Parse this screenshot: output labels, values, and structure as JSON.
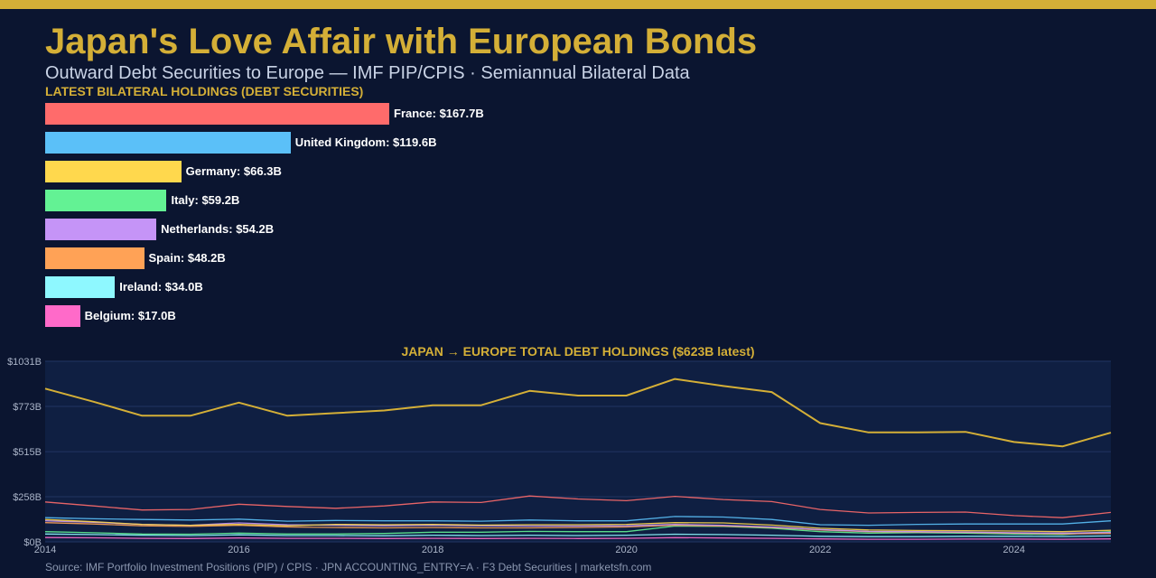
{
  "header": {
    "title": "Japan's Love Affair with European Bonds",
    "subtitle": "Outward Debt Securities to Europe — IMF PIP/CPIS · Semiannual Bilateral Data",
    "section_label": "LATEST BILATERAL HOLDINGS (DEBT SECURITIES)"
  },
  "footer": {
    "source": "Source: IMF Portfolio Investment Positions (PIP) / CPIS · JPN ACCOUNTING_ENTRY=A · F3 Debt Securities  |  marketsfn.com"
  },
  "colors": {
    "background": "#0b1530",
    "accent": "#d4af37",
    "plot_bg": "#0f1f42",
    "grid": "#223563",
    "axis_text": "#aab4c8"
  },
  "chart_data": [
    {
      "type": "bar",
      "orientation": "horizontal",
      "title": "LATEST BILATERAL HOLDINGS (DEBT SECURITIES)",
      "unit": "$B",
      "categories": [
        "France",
        "United Kingdom",
        "Germany",
        "Italy",
        "Netherlands",
        "Spain",
        "Ireland",
        "Belgium"
      ],
      "values": [
        167.7,
        119.6,
        66.3,
        59.2,
        54.2,
        48.2,
        34.0,
        17.0
      ],
      "labels": [
        "France: $167.7B",
        "United Kingdom: $119.6B",
        "Germany: $66.3B",
        "Italy: $59.2B",
        "Netherlands: $54.2B",
        "Spain: $48.2B",
        "Ireland: $34.0B",
        "Belgium: $17.0B"
      ],
      "colors": [
        "#ff6b6b",
        "#5bc0f8",
        "#ffd84d",
        "#63f294",
        "#c594f7",
        "#ffa256",
        "#8ef8ff",
        "#ff6ac9"
      ]
    },
    {
      "type": "line",
      "title": "JAPAN → EUROPE TOTAL DEBT HOLDINGS ($623B latest)",
      "xlim": [
        2014,
        2025
      ],
      "ylim": [
        0,
        1031
      ],
      "yticks": [
        0,
        258,
        515,
        773,
        1031
      ],
      "ytick_labels": [
        "$0B",
        "$258B",
        "$515B",
        "$773B",
        "$1031B"
      ],
      "xticks": [
        2014,
        2016,
        2018,
        2020,
        2022,
        2024
      ],
      "grid": true,
      "x": [
        2014,
        2014.5,
        2015,
        2015.5,
        2016,
        2016.5,
        2017,
        2017.5,
        2018,
        2018.5,
        2019,
        2019.5,
        2020,
        2020.5,
        2021,
        2021.5,
        2022,
        2022.5,
        2023,
        2023.5,
        2024,
        2024.5,
        2025
      ],
      "series": [
        {
          "color": "#d4af37",
          "width": 2,
          "values": [
            875,
            800,
            720,
            720,
            795,
            720,
            735,
            750,
            780,
            780,
            862,
            835,
            835,
            930,
            890,
            855,
            678,
            625,
            625,
            628,
            570,
            545,
            623
          ]
        },
        {
          "color": "#ff6b6b",
          "width": 1.3,
          "values": [
            228,
            205,
            182,
            185,
            215,
            202,
            192,
            205,
            228,
            225,
            262,
            245,
            235,
            260,
            242,
            230,
            185,
            165,
            168,
            170,
            150,
            138,
            168
          ]
        },
        {
          "color": "#5bc0f8",
          "width": 1.3,
          "values": [
            138,
            132,
            128,
            125,
            130,
            118,
            122,
            120,
            120,
            118,
            125,
            120,
            120,
            145,
            142,
            128,
            98,
            95,
            100,
            102,
            102,
            102,
            120
          ]
        },
        {
          "color": "#ffd84d",
          "width": 1.3,
          "values": [
            128,
            115,
            100,
            95,
            100,
            92,
            100,
            98,
            100,
            96,
            98,
            98,
            100,
            110,
            108,
            96,
            78,
            68,
            65,
            64,
            62,
            58,
            66
          ]
        },
        {
          "color": "#c594f7",
          "width": 1.3,
          "values": [
            120,
            112,
            100,
            95,
            108,
            98,
            95,
            92,
            95,
            92,
            90,
            90,
            92,
            100,
            95,
            85,
            70,
            60,
            58,
            56,
            52,
            50,
            54
          ]
        },
        {
          "color": "#ffa256",
          "width": 1.3,
          "values": [
            110,
            102,
            92,
            88,
            95,
            85,
            82,
            80,
            82,
            80,
            80,
            82,
            85,
            95,
            90,
            82,
            68,
            58,
            56,
            54,
            50,
            46,
            48
          ]
        },
        {
          "color": "#63f294",
          "width": 1.3,
          "values": [
            58,
            52,
            45,
            44,
            50,
            45,
            45,
            48,
            55,
            55,
            60,
            58,
            58,
            90,
            88,
            78,
            58,
            50,
            52,
            50,
            45,
            42,
            59
          ]
        },
        {
          "color": "#8ef8ff",
          "width": 1.3,
          "values": [
            45,
            42,
            38,
            36,
            40,
            36,
            36,
            35,
            38,
            36,
            38,
            36,
            38,
            44,
            42,
            38,
            32,
            30,
            30,
            32,
            32,
            31,
            34
          ]
        },
        {
          "color": "#ff6ac9",
          "width": 1.3,
          "values": [
            25,
            23,
            20,
            19,
            22,
            20,
            20,
            19,
            20,
            19,
            20,
            19,
            20,
            24,
            22,
            20,
            17,
            15,
            15,
            16,
            16,
            15,
            17
          ]
        }
      ]
    }
  ]
}
